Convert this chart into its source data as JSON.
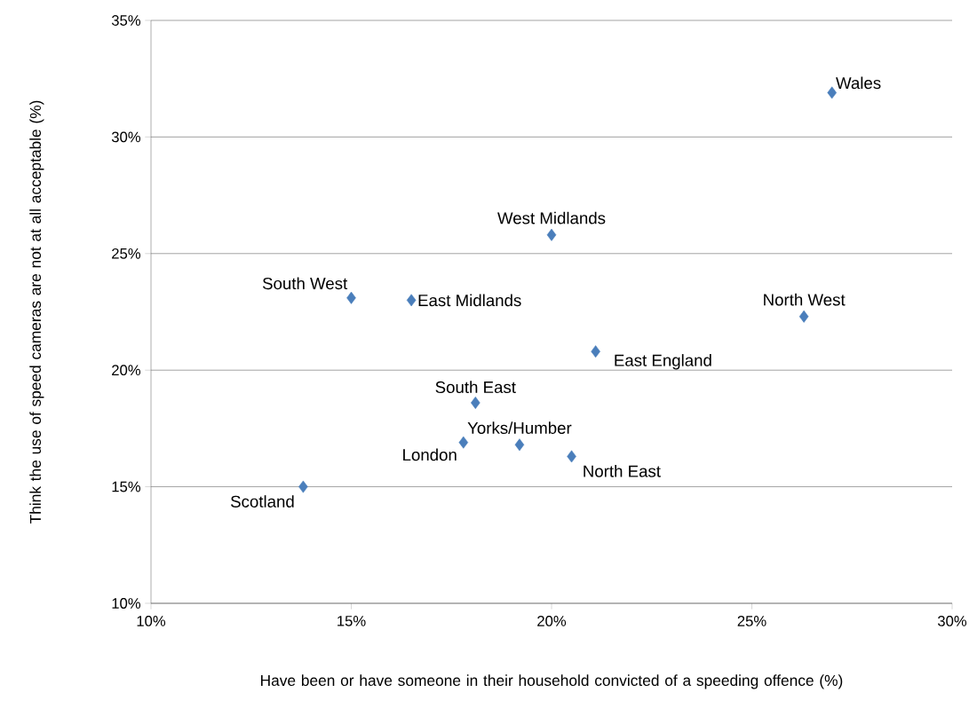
{
  "chart_data": {
    "type": "scatter",
    "xlabel": "Have been or have someone in their household convicted of a speeding offence (%)",
    "ylabel": "Think the use of speed cameras are not at all acceptable (%)",
    "series": [
      {
        "color": "#4a7ebb",
        "x": [
          27.0,
          20.0,
          15.0,
          16.5,
          26.3,
          21.1,
          18.1,
          17.8,
          19.2,
          20.5,
          13.8
        ],
        "values": [
          31.9,
          25.8,
          23.1,
          23.0,
          22.3,
          20.8,
          18.6,
          16.9,
          16.8,
          16.3,
          15.0
        ]
      }
    ],
    "annotations": [
      {
        "text": "Wales",
        "x": 27.0,
        "y": 31.9
      },
      {
        "text": "West Midlands",
        "x": 20.0,
        "y": 25.8
      },
      {
        "text": "South West",
        "x": 15.0,
        "y": 23.1
      },
      {
        "text": "East Midlands",
        "x": 16.5,
        "y": 23.0
      },
      {
        "text": "North West",
        "x": 26.3,
        "y": 22.3
      },
      {
        "text": "East England",
        "x": 21.1,
        "y": 20.8
      },
      {
        "text": "South East",
        "x": 18.1,
        "y": 18.6
      },
      {
        "text": "London",
        "x": 17.8,
        "y": 16.9
      },
      {
        "text": "Yorks/Humber",
        "x": 19.2,
        "y": 16.8
      },
      {
        "text": "North East",
        "x": 20.5,
        "y": 16.3
      },
      {
        "text": "Scotland",
        "x": 13.8,
        "y": 15.0
      }
    ],
    "xlim": [
      10,
      30
    ],
    "ylim": [
      10,
      35
    ],
    "xticks": [
      {
        "value": 10,
        "label": "10%"
      },
      {
        "value": 15,
        "label": "15%"
      },
      {
        "value": 20,
        "label": "20%"
      },
      {
        "value": 25,
        "label": "25%"
      },
      {
        "value": 30,
        "label": "30%"
      }
    ],
    "yticks": [
      {
        "value": 10,
        "label": "10%"
      },
      {
        "value": 15,
        "label": "15%"
      },
      {
        "value": 20,
        "label": "20%"
      },
      {
        "value": 25,
        "label": "25%"
      },
      {
        "value": 30,
        "label": "30%"
      },
      {
        "value": 35,
        "label": "35%"
      }
    ],
    "grid": "y",
    "marker": "diamond"
  }
}
